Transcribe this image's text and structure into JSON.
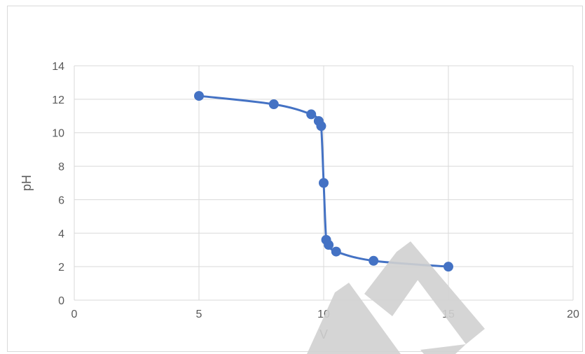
{
  "chart_data": {
    "type": "scatter",
    "title": "",
    "xlabel": "V",
    "ylabel": "pH",
    "xlim": [
      0,
      20
    ],
    "ylim": [
      0,
      14
    ],
    "xticks": [
      0,
      5,
      10,
      15,
      20
    ],
    "yticks": [
      0,
      2,
      4,
      6,
      8,
      10,
      12,
      14
    ],
    "grid": true,
    "smooth_line": true,
    "series": [
      {
        "color": "#4472C4",
        "points": [
          {
            "x": 5.0,
            "y": 12.2
          },
          {
            "x": 8.0,
            "y": 11.7
          },
          {
            "x": 9.5,
            "y": 11.1
          },
          {
            "x": 9.8,
            "y": 10.7
          },
          {
            "x": 9.9,
            "y": 10.4
          },
          {
            "x": 10.0,
            "y": 7.0
          },
          {
            "x": 10.1,
            "y": 3.6
          },
          {
            "x": 10.2,
            "y": 3.3
          },
          {
            "x": 10.5,
            "y": 2.9
          },
          {
            "x": 12.0,
            "y": 2.35
          },
          {
            "x": 15.0,
            "y": 2.0
          }
        ]
      }
    ]
  },
  "watermark": {
    "color": "#d0d0d0",
    "icon": "watermark-logo"
  }
}
